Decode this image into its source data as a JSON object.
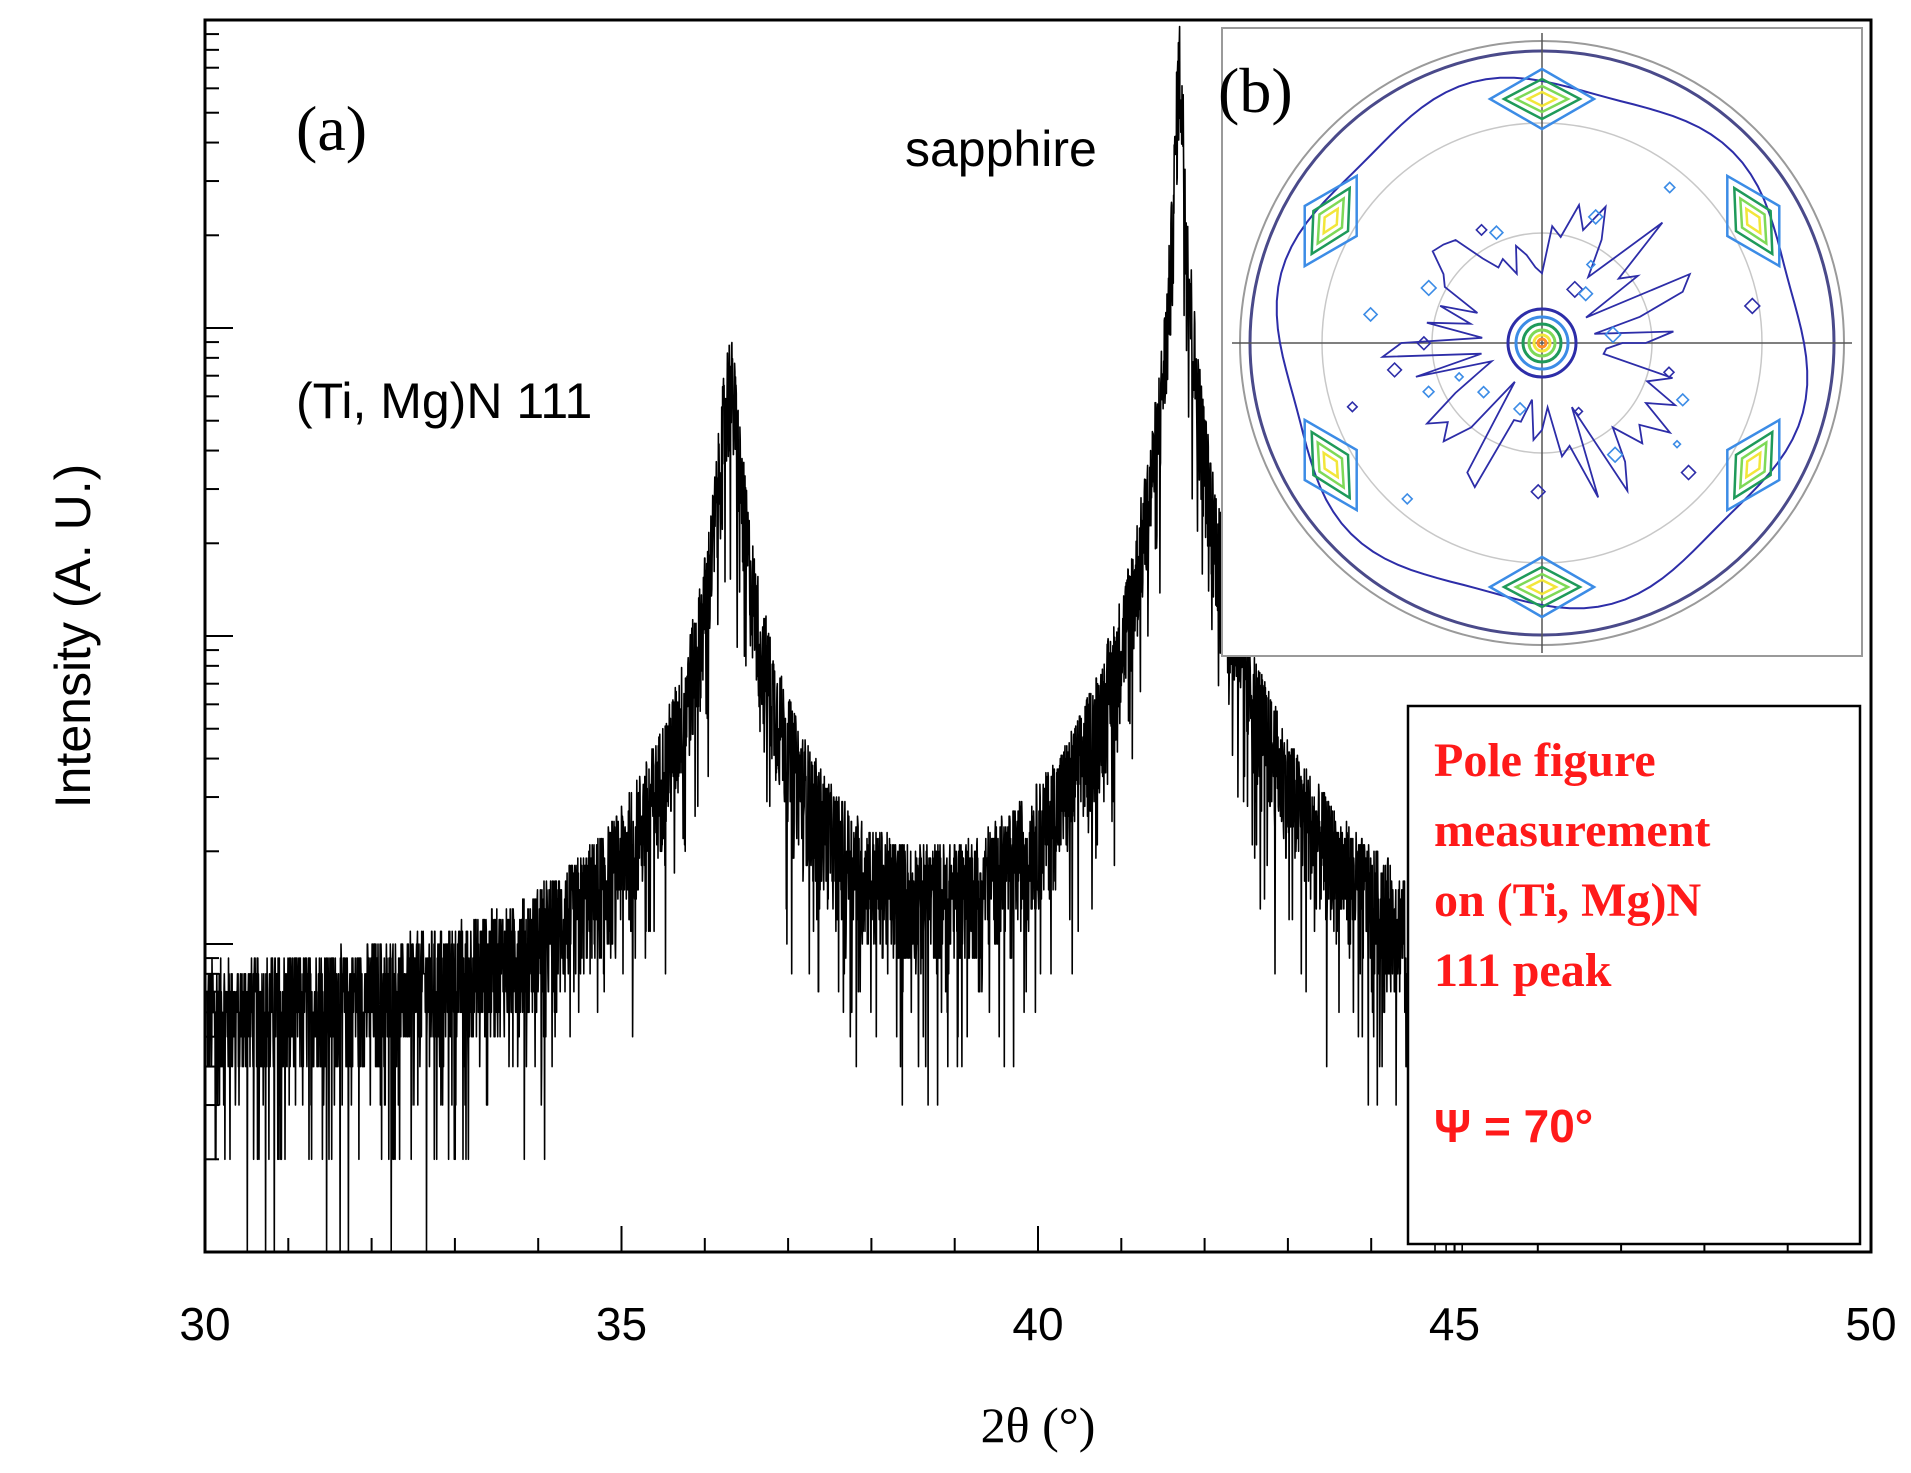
{
  "chart_data": {
    "type": "line",
    "panel_labels": {
      "a": "(a)",
      "b": "(b)"
    },
    "xlabel": "2θ (°)",
    "ylabel": "Intensity (A. U.)",
    "xlim": [
      30,
      50
    ],
    "x_ticks": [
      30,
      35,
      40,
      45,
      50
    ],
    "y_scale": "log",
    "y_tick_labels": [],
    "series": [
      {
        "name": "XRD 2θ scan",
        "color": "#000000",
        "noise_floor": 5,
        "peaks": [
          {
            "label": "(Ti, Mg)N 111",
            "x": 36.3,
            "amplitude": 600
          },
          {
            "label": "sapphire",
            "x": 41.7,
            "amplitude": 6400
          }
        ]
      }
    ],
    "inset": {
      "type": "pole figure",
      "label": "(b)",
      "symmetry": "sixfold",
      "colors": [
        "#2d2da8",
        "#3c8ce6",
        "#1f9a5a",
        "#7ed957",
        "#f2e63a",
        "#ff8c2a"
      ]
    },
    "annotation_box": {
      "color": "#ff1a1a",
      "lines": [
        "Pole figure",
        "measurement",
        "on (Ti, Mg)N",
        "111 peak",
        "",
        "Ψ = 70°"
      ]
    }
  }
}
